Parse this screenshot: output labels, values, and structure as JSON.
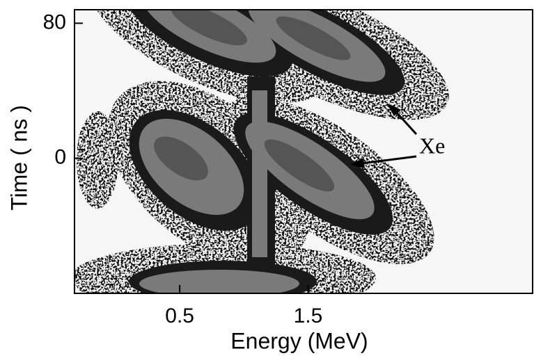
{
  "chart_data": {
    "type": "heatmap",
    "xlabel": "Energy (MeV)",
    "ylabel": "Time ( ns )",
    "xlim": [
      -0.32,
      3.25
    ],
    "ylim": [
      -80,
      88
    ],
    "xticks": [
      0.5,
      1.5
    ],
    "yticks": [
      0,
      80
    ],
    "annotations": [
      {
        "text": "Xe"
      }
    ]
  }
}
